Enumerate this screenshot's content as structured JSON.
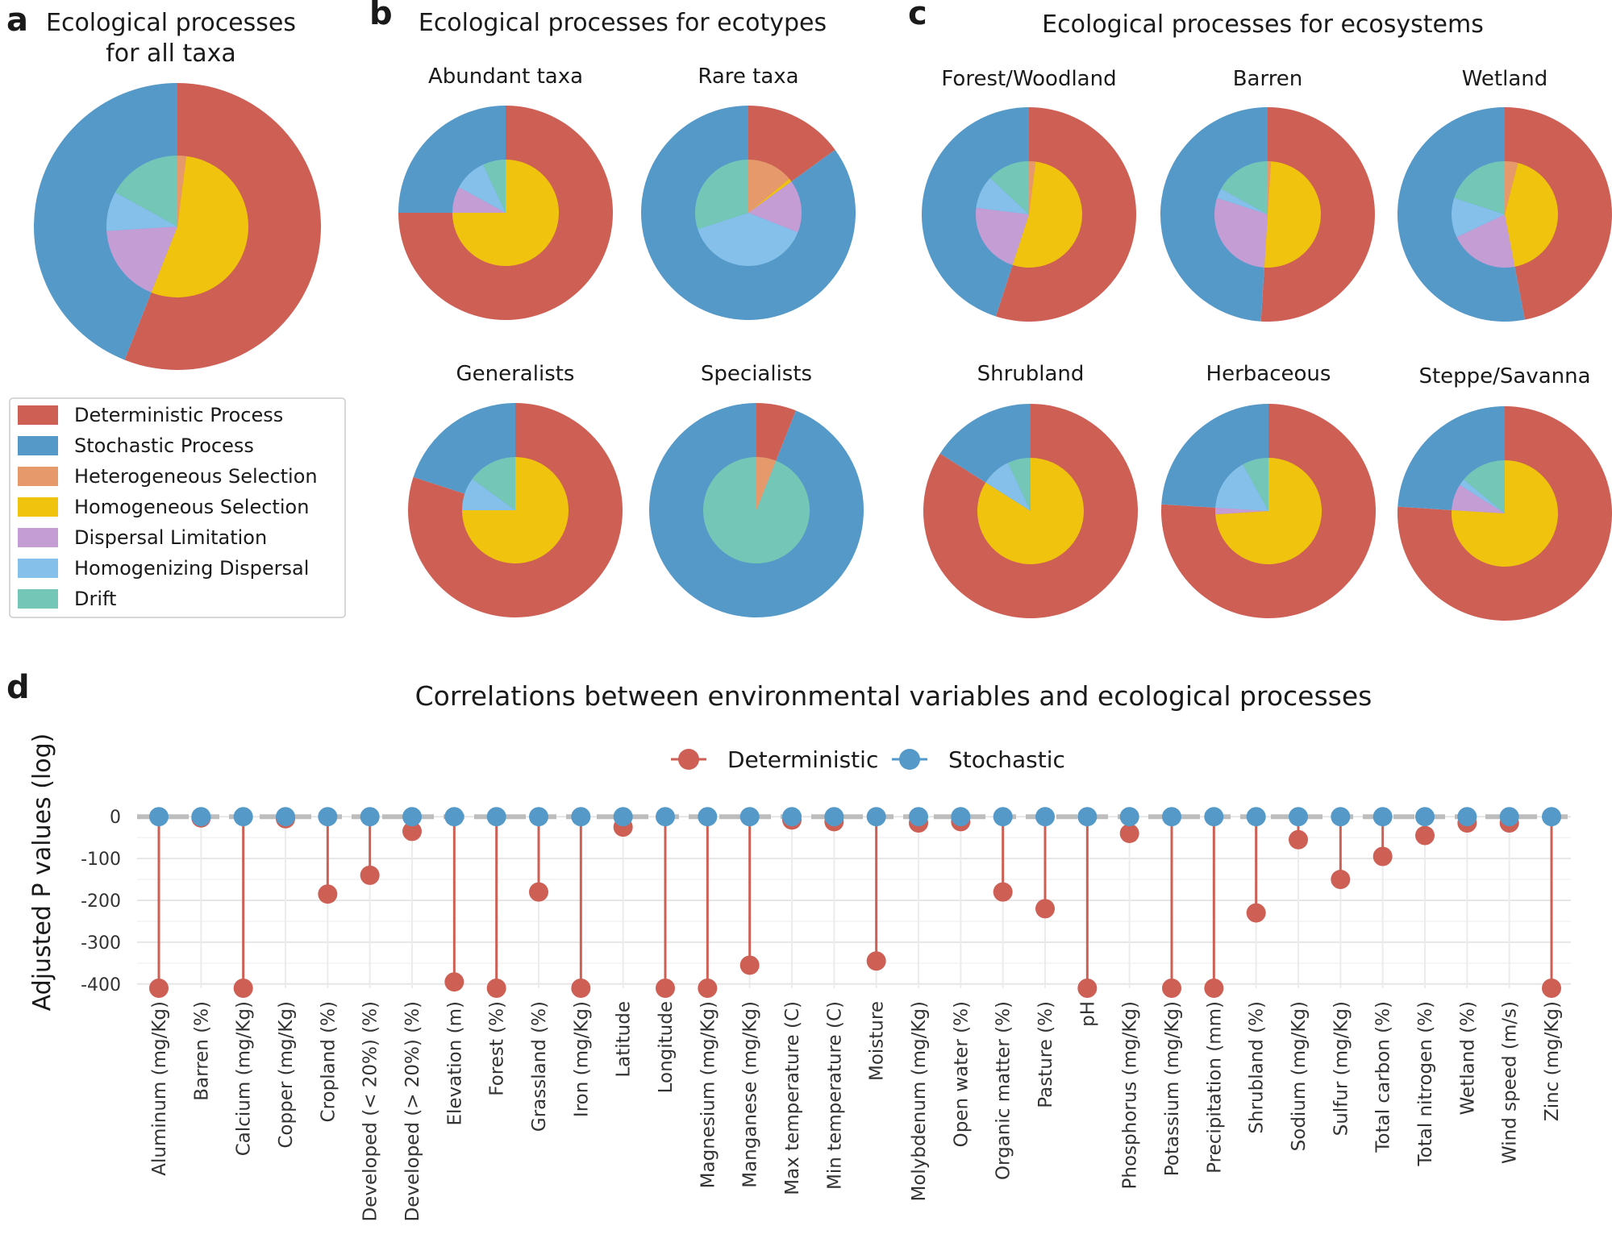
{
  "colors": {
    "Deterministic Process": "#CD5F55",
    "Stochastic Process": "#5599C9",
    "Heterogeneous Selection": "#E69A6C",
    "Homogeneous Selection": "#F0C30F",
    "Dispersal Limitation": "#C49DD5",
    "Homogenizing Dispersal": "#85C0EA",
    "Drift": "#74C6B6"
  },
  "panel_labels": {
    "a": "a",
    "b": "b",
    "c": "c",
    "d": "d"
  },
  "panel_titles": {
    "a_line1": "Ecological processes",
    "a_line2": "for all taxa",
    "b": "Ecological processes for ecotypes",
    "c": "Ecological processes for ecosystems",
    "d": "Correlations between environmental variables and ecological processes"
  },
  "legend_a": [
    "Deterministic Process",
    "Stochastic Process",
    "Heterogeneous Selection",
    "Homogeneous Selection",
    "Dispersal Limitation",
    "Homogenizing Dispersal",
    "Drift"
  ],
  "legend_d": [
    "Deterministic",
    "Stochastic"
  ],
  "chart_data": [
    {
      "type": "pie",
      "panel": "a",
      "title": "",
      "outer": {
        "Deterministic Process": 56,
        "Stochastic Process": 44
      },
      "inner": {
        "Heterogeneous Selection": 2,
        "Homogeneous Selection": 54,
        "Dispersal Limitation": 18,
        "Homogenizing Dispersal": 9,
        "Drift": 17
      }
    },
    {
      "type": "pie",
      "panel": "b",
      "title": "Abundant taxa",
      "outer": {
        "Deterministic Process": 75,
        "Stochastic Process": 25
      },
      "inner": {
        "Heterogeneous Selection": 0,
        "Homogeneous Selection": 75,
        "Dispersal Limitation": 8,
        "Homogenizing Dispersal": 10,
        "Drift": 7
      }
    },
    {
      "type": "pie",
      "panel": "b",
      "title": "Rare taxa",
      "outer": {
        "Deterministic Process": 15,
        "Stochastic Process": 85
      },
      "inner": {
        "Heterogeneous Selection": 14,
        "Homogeneous Selection": 1,
        "Dispersal Limitation": 16,
        "Homogenizing Dispersal": 39,
        "Drift": 30
      }
    },
    {
      "type": "pie",
      "panel": "b",
      "title": "Generalists",
      "outer": {
        "Deterministic Process": 80,
        "Stochastic Process": 20
      },
      "inner": {
        "Heterogeneous Selection": 0,
        "Homogeneous Selection": 75,
        "Dispersal Limitation": 0,
        "Homogenizing Dispersal": 10,
        "Drift": 15
      }
    },
    {
      "type": "pie",
      "panel": "b",
      "title": "Specialists",
      "outer": {
        "Deterministic Process": 6,
        "Stochastic Process": 94
      },
      "inner": {
        "Heterogeneous Selection": 6,
        "Homogeneous Selection": 0,
        "Dispersal Limitation": 0,
        "Homogenizing Dispersal": 0,
        "Drift": 94
      }
    },
    {
      "type": "pie",
      "panel": "c",
      "title": "Forest/Woodland",
      "outer": {
        "Deterministic Process": 55,
        "Stochastic Process": 45
      },
      "inner": {
        "Heterogeneous Selection": 2,
        "Homogeneous Selection": 53,
        "Dispersal Limitation": 22,
        "Homogenizing Dispersal": 10,
        "Drift": 13
      }
    },
    {
      "type": "pie",
      "panel": "c",
      "title": "Barren",
      "outer": {
        "Deterministic Process": 51,
        "Stochastic Process": 49
      },
      "inner": {
        "Heterogeneous Selection": 1,
        "Homogeneous Selection": 50,
        "Dispersal Limitation": 29,
        "Homogenizing Dispersal": 3,
        "Drift": 17
      }
    },
    {
      "type": "pie",
      "panel": "c",
      "title": "Wetland",
      "outer": {
        "Deterministic Process": 47,
        "Stochastic Process": 53
      },
      "inner": {
        "Heterogeneous Selection": 4,
        "Homogeneous Selection": 43,
        "Dispersal Limitation": 21,
        "Homogenizing Dispersal": 12,
        "Drift": 20
      }
    },
    {
      "type": "pie",
      "panel": "c",
      "title": "Shrubland",
      "outer": {
        "Deterministic Process": 84,
        "Stochastic Process": 16
      },
      "inner": {
        "Heterogeneous Selection": 0,
        "Homogeneous Selection": 84,
        "Dispersal Limitation": 0,
        "Homogenizing Dispersal": 9,
        "Drift": 7
      }
    },
    {
      "type": "pie",
      "panel": "c",
      "title": "Herbaceous",
      "outer": {
        "Deterministic Process": 76,
        "Stochastic Process": 24
      },
      "inner": {
        "Heterogeneous Selection": 0,
        "Homogeneous Selection": 74,
        "Dispersal Limitation": 2,
        "Homogenizing Dispersal": 16,
        "Drift": 8
      }
    },
    {
      "type": "pie",
      "panel": "c",
      "title": "Steppe/Savanna",
      "outer": {
        "Deterministic Process": 76,
        "Stochastic Process": 24
      },
      "inner": {
        "Heterogeneous Selection": 0,
        "Homogeneous Selection": 76,
        "Dispersal Limitation": 8,
        "Homogenizing Dispersal": 2,
        "Drift": 14
      }
    },
    {
      "type": "lollipop",
      "panel": "d",
      "title": "Correlations between environmental variables and ecological processes",
      "ylabel": "Adjusted P values (log)",
      "ylim": [
        -410,
        10
      ],
      "yticks": [
        0,
        -100,
        -200,
        -300,
        -400
      ],
      "categories": [
        "Aluminum (mg/Kg)",
        "Barren (%)",
        "Calcium (mg/Kg)",
        "Copper (mg/Kg)",
        "Cropland (%)",
        "Developed (< 20%) (%)",
        "Developed (> 20%) (%)",
        "Elevation (m)",
        "Forest (%)",
        "Grassland (%)",
        "Iron (mg/Kg)",
        "Latitude",
        "Longitude",
        "Magnesium (mg/Kg)",
        "Manganese (mg/Kg)",
        "Max temperature (C)",
        "Min temperature (C)",
        "Moisture",
        "Molybdenum (mg/Kg)",
        "Open water (%)",
        "Organic matter (%)",
        "Pasture (%)",
        "pH",
        "Phosphorus (mg/Kg)",
        "Potassium (mg/Kg)",
        "Precipitation (mm)",
        "Shrubland (%)",
        "Sodium (mg/Kg)",
        "Sulfur (mg/Kg)",
        "Total carbon (%)",
        "Total nitrogen (%)",
        "Wetland (%)",
        "Wind speed (m/s)",
        "Zinc (mg/Kg)"
      ],
      "series": [
        {
          "name": "Deterministic",
          "values": [
            -410,
            -3,
            -410,
            -5,
            -185,
            -140,
            -35,
            -395,
            -410,
            -180,
            -410,
            -25,
            -410,
            -410,
            -355,
            -8,
            -12,
            -345,
            -15,
            -12,
            -180,
            -220,
            -410,
            -40,
            -410,
            -410,
            -230,
            -55,
            -150,
            -95,
            -45,
            -15,
            -15,
            -410
          ]
        },
        {
          "name": "Stochastic",
          "values": [
            0,
            0,
            0,
            0,
            0,
            0,
            0,
            0,
            0,
            0,
            0,
            0,
            0,
            0,
            0,
            0,
            0,
            0,
            0,
            0,
            0,
            0,
            0,
            0,
            0,
            0,
            0,
            0,
            0,
            0,
            0,
            0,
            0,
            0
          ]
        }
      ]
    }
  ]
}
